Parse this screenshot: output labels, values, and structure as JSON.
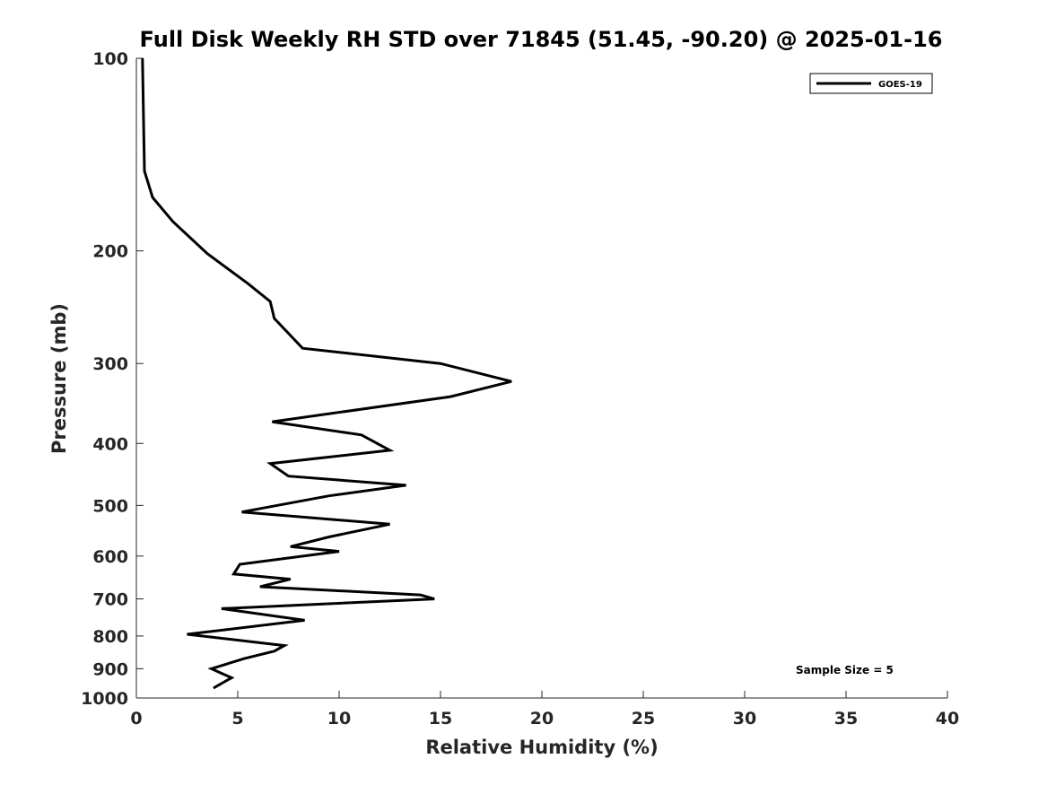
{
  "chart_data": {
    "type": "line",
    "title": "Full Disk Weekly RH STD over 71845 (51.45, -90.20) @ 2025-01-16",
    "xlabel": "Relative Humidity (%)",
    "ylabel": "Pressure (mb)",
    "xlim": [
      0,
      40
    ],
    "ylim": [
      100,
      1000
    ],
    "yscale": "log",
    "ydirection": "reversed",
    "xticks": [
      0,
      5,
      10,
      15,
      20,
      25,
      30,
      35,
      40
    ],
    "yticks": [
      100,
      200,
      300,
      400,
      500,
      600,
      700,
      800,
      900,
      1000
    ],
    "grid": false,
    "legend_position": "top-right",
    "annotation": "Sample Size = 5",
    "series": [
      {
        "name": "GOES-19",
        "color": "#000000",
        "x": [
          0.3,
          0.4,
          0.8,
          1.8,
          3.5,
          5.5,
          6.6,
          6.8,
          8.2,
          15.0,
          18.5,
          15.5,
          6.7,
          11.1,
          12.5,
          6.6,
          7.5,
          13.3,
          9.5,
          5.2,
          12.5,
          9.5,
          7.6,
          10.0,
          5.1,
          4.8,
          7.6,
          6.1,
          14.0,
          14.7,
          4.2,
          8.3,
          2.5,
          7.3,
          6.8,
          5.3,
          3.7,
          4.2,
          4.7,
          4.3,
          3.8
        ],
        "y": [
          100,
          150,
          165,
          180,
          202,
          225,
          240,
          255,
          284,
          300,
          320,
          338,
          370,
          388,
          410,
          430,
          450,
          465,
          483,
          512,
          535,
          560,
          580,
          590,
          618,
          640,
          652,
          670,
          690,
          700,
          725,
          756,
          795,
          828,
          845,
          868,
          900,
          915,
          930,
          945,
          965
        ]
      }
    ]
  }
}
